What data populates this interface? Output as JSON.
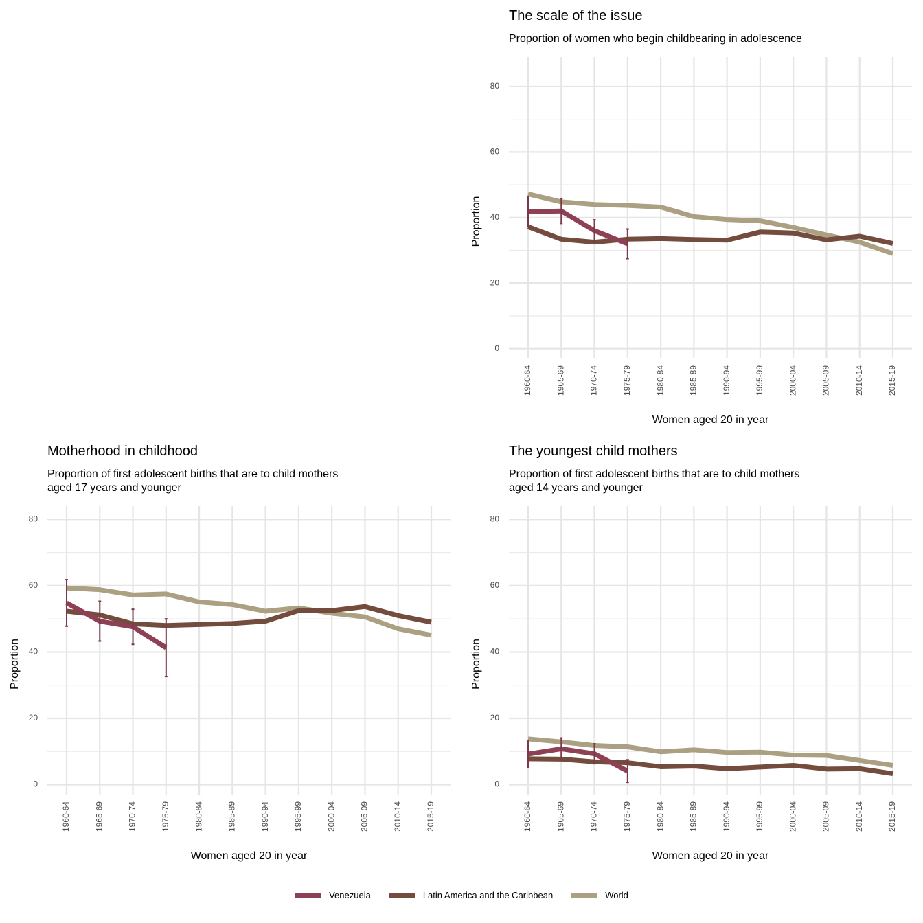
{
  "chart_data": [
    {
      "type": "line",
      "title": "The scale of the issue",
      "subtitle": "Proportion of women who begin childbearing in adolescence",
      "x_label": "Women aged 20 in year",
      "y_label": "Proportion",
      "categories": [
        "1960-64",
        "1965-69",
        "1970-74",
        "1975-79",
        "1980-84",
        "1985-89",
        "1990-94",
        "1995-99",
        "2000-04",
        "2005-09",
        "2010-14",
        "2015-19"
      ],
      "ylim": [
        -3,
        89
      ],
      "yticks": [
        0,
        20,
        40,
        60,
        80
      ],
      "minor_yticks": [
        10,
        30,
        50,
        70
      ],
      "grid": true,
      "series": [
        {
          "name": "Venezuela",
          "color": "#8e4155",
          "values": [
            41.8,
            42,
            36,
            32,
            null,
            null,
            null,
            null,
            null,
            null,
            null,
            null
          ],
          "errors": [
            4.5,
            3.8,
            3.3,
            4.5,
            null,
            null,
            null,
            null,
            null,
            null,
            null,
            null
          ]
        },
        {
          "name": "Latin America and the Caribbean",
          "color": "#734c3e",
          "values": [
            37.2,
            33.4,
            32.5,
            33.4,
            33.6,
            33.3,
            33.1,
            35.6,
            35.3,
            33.2,
            34.3,
            32.1
          ]
        },
        {
          "name": "World",
          "color": "#aca083",
          "values": [
            47.2,
            44.8,
            44,
            43.7,
            43.2,
            40.3,
            39.4,
            39,
            37,
            34.7,
            32.5,
            29
          ]
        }
      ]
    },
    {
      "type": "line",
      "title": "Motherhood in childhood",
      "subtitle": "Proportion of first adolescent births that are to child mothers\naged 17 years and younger",
      "x_label": "Women aged 20 in year",
      "y_label": "Proportion",
      "categories": [
        "1960-64",
        "1965-69",
        "1970-74",
        "1975-79",
        "1980-84",
        "1985-89",
        "1990-94",
        "1995-99",
        "2000-04",
        "2005-09",
        "2010-14",
        "2015-19"
      ],
      "ylim": [
        -3,
        84
      ],
      "yticks": [
        0,
        20,
        40,
        60,
        80
      ],
      "minor_yticks": [
        10,
        30,
        50,
        70
      ],
      "grid": true,
      "series": [
        {
          "name": "Venezuela",
          "color": "#8e4155",
          "values": [
            54.8,
            49.3,
            47.6,
            41.3,
            null,
            null,
            null,
            null,
            null,
            null,
            null,
            null
          ],
          "errors": [
            7,
            6,
            5.3,
            8.7,
            null,
            null,
            null,
            null,
            null,
            null,
            null,
            null
          ]
        },
        {
          "name": "Latin America and the Caribbean",
          "color": "#734c3e",
          "values": [
            52.3,
            51.2,
            48.5,
            48,
            48.3,
            48.6,
            49.3,
            52.5,
            52.5,
            53.7,
            51,
            49
          ]
        },
        {
          "name": "World",
          "color": "#aca083",
          "values": [
            59.3,
            58.8,
            57.2,
            57.5,
            55.1,
            54.3,
            52.3,
            53.3,
            51.7,
            50.6,
            47,
            45.1
          ]
        }
      ]
    },
    {
      "type": "line",
      "title": "The youngest child mothers",
      "subtitle": "Proportion of first adolescent births that are to child mothers\naged 14 years and younger",
      "x_label": "Women aged 20 in year",
      "y_label": "Proportion",
      "categories": [
        "1960-64",
        "1965-69",
        "1970-74",
        "1975-79",
        "1980-84",
        "1985-89",
        "1990-94",
        "1995-99",
        "2000-04",
        "2005-09",
        "2010-14",
        "2015-19"
      ],
      "ylim": [
        -3,
        84
      ],
      "yticks": [
        0,
        20,
        40,
        60,
        80
      ],
      "minor_yticks": [
        10,
        30,
        50,
        70
      ],
      "grid": true,
      "series": [
        {
          "name": "Venezuela",
          "color": "#8e4155",
          "values": [
            9.2,
            10.8,
            9.3,
            4.1,
            null,
            null,
            null,
            null,
            null,
            null,
            null,
            null
          ],
          "errors": [
            4,
            3.3,
            3,
            3.4,
            null,
            null,
            null,
            null,
            null,
            null,
            null,
            null
          ]
        },
        {
          "name": "Latin America and the Caribbean",
          "color": "#734c3e",
          "values": [
            7.8,
            7.7,
            6.9,
            6.6,
            5.4,
            5.6,
            4.8,
            5.3,
            5.8,
            4.7,
            4.8,
            3.3
          ]
        },
        {
          "name": "World",
          "color": "#aca083",
          "values": [
            13.8,
            12.9,
            11.8,
            11.4,
            9.9,
            10.5,
            9.7,
            9.8,
            8.9,
            8.8,
            7.3,
            5.8
          ]
        }
      ]
    }
  ]
}
